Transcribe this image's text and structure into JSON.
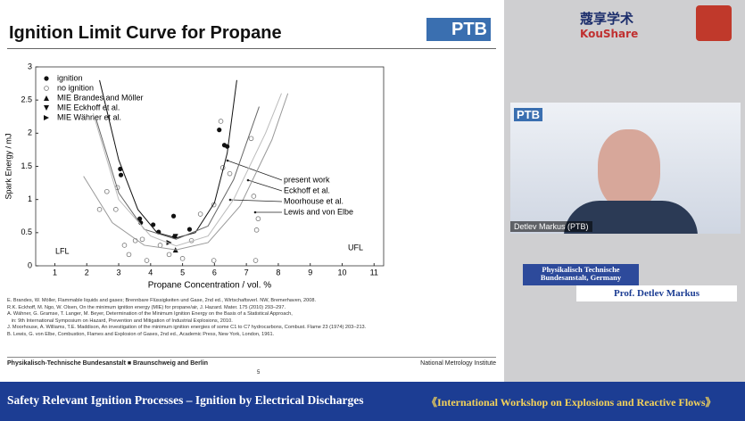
{
  "slide": {
    "title": "Ignition Limit Curve for Propane",
    "logo": "PTB",
    "references": [
      "E. Brandes, W. Möller, Flammable liquids and gases; Brennbare Flüssigkeiten und Gase, 2nd ed., Wirtschaftsverl. NW, Bremerhaven, 2008.",
      "R.K. Eckhoff, M. Ngo, W. Olsen, On the minimum ignition energy (MIE) for propane/air, J. Hazard. Mater. 175 (2010) 293–297.",
      "A. Wähner, G. Gramse, T. Langer, M. Beyer, Determination of the Minimum Ignition Energy on the Basis of a Statistical Approach,",
      "   in: 9th International Symposium on Hazard, Prevention and Mitigation of Industrial Explosions, 2010.",
      "J. Moorhouse, A. Williams, T.E. Maddison, An investigation of the minimum ignition energies of some C1 to C7 hydrocarbons, Combust. Flame 23 (1974) 203–213.",
      "B. Lewis, G. von Elbe, Combustion, Flames and Explosion of Gases, 2nd ed., Academic Press, New York, London, 1961."
    ],
    "footer": {
      "left": "Physikalisch-Technische Bundesanstalt ■ Braunschweig and Berlin",
      "right": "National Metrology Institute",
      "page": "5"
    }
  },
  "chart_data": {
    "type": "scatter",
    "x_label": "Propane Concentration / vol. %",
    "y_label": "Spark Energy / mJ",
    "xlim": [
      0.4,
      11.3
    ],
    "ylim": [
      0,
      3
    ],
    "xticks": [
      1,
      2,
      3,
      4,
      5,
      6,
      7,
      8,
      9,
      10,
      11
    ],
    "yticks": [
      0,
      0.5,
      1,
      1.5,
      2,
      2.5,
      3
    ],
    "legend": "upper left",
    "annotations": [
      "LFL",
      "UFL"
    ],
    "series": [
      {
        "name": "ignition",
        "marker": "filled-circle",
        "color": "#111",
        "x": [
          3.07,
          3.05,
          3.66,
          3.69,
          4.08,
          4.25,
          4.72,
          5.22,
          6.15,
          6.31,
          6.4,
          4.75
        ],
        "values": [
          1.37,
          1.46,
          0.71,
          0.65,
          0.62,
          0.51,
          0.75,
          0.55,
          2.05,
          1.82,
          1.8,
          0.44
        ]
      },
      {
        "name": "no ignition",
        "marker": "open-circle",
        "color": "#777",
        "x": [
          2.96,
          2.91,
          3.18,
          3.32,
          3.52,
          3.88,
          4.3,
          4.58,
          5.0,
          5.28,
          5.56,
          5.98,
          6.26,
          6.48,
          6.2,
          7.15,
          7.23,
          7.37,
          7.32,
          7.29,
          2.4,
          2.63,
          3.74,
          5.98
        ],
        "values": [
          1.18,
          0.85,
          0.31,
          0.17,
          0.38,
          0.08,
          0.31,
          0.17,
          0.11,
          0.38,
          0.78,
          0.92,
          1.48,
          1.39,
          2.18,
          1.92,
          1.05,
          0.71,
          0.54,
          0.08,
          0.85,
          1.12,
          0.4,
          0.08
        ]
      },
      {
        "name": "MIE Brandes and Möller",
        "marker": "triangle-up",
        "color": "#111",
        "x": [
          4.78
        ],
        "values": [
          0.24
        ]
      },
      {
        "name": "MIE Eckhoff et al.",
        "marker": "triangle-down",
        "color": "#111",
        "x": [
          4.78
        ],
        "values": [
          0.44
        ]
      },
      {
        "name": "MIE Wähner et al.",
        "marker": "triangle-right",
        "color": "#111",
        "x": [
          4.58
        ],
        "values": [
          0.35
        ]
      },
      {
        "name": "present work",
        "color": "#111",
        "x": [
          2.4,
          3.0,
          3.6,
          4.2,
          4.8,
          5.4,
          6.0,
          6.4,
          6.7
        ],
        "values": [
          2.8,
          1.6,
          0.85,
          0.5,
          0.42,
          0.5,
          0.95,
          1.7,
          2.8
        ]
      },
      {
        "name": "Eckhoff et al.",
        "color": "#666",
        "x": [
          2.3,
          3.0,
          3.8,
          4.8,
          5.8,
          6.6,
          7.4
        ],
        "values": [
          2.2,
          1.1,
          0.55,
          0.4,
          0.6,
          1.3,
          2.4
        ]
      },
      {
        "name": "Moorhouse et al.",
        "color": "#999",
        "x": [
          1.9,
          2.8,
          3.8,
          4.8,
          5.8,
          6.8,
          7.8,
          8.3
        ],
        "values": [
          1.35,
          0.65,
          0.31,
          0.24,
          0.35,
          0.9,
          1.9,
          2.6
        ]
      },
      {
        "name": "Lewis and von Elbe",
        "color": "#bbb",
        "x": [
          2.2,
          3.0,
          4.0,
          4.8,
          5.8,
          6.6,
          7.6,
          8.1
        ],
        "values": [
          2.3,
          1.0,
          0.45,
          0.3,
          0.45,
          1.0,
          2.0,
          2.6
        ]
      }
    ]
  },
  "header": {
    "brand_cn": "蔻享学术",
    "brand_en": "KouShare"
  },
  "video": {
    "logo": "PTB",
    "speaker_tag": "Detlev Markus (PTB)"
  },
  "caption": {
    "institution": [
      "Physikalisch Technische",
      "Bundesanstalt, Germany"
    ],
    "speaker": "Prof. Detlev Markus"
  },
  "banner": {
    "left": "Safety Relevant Ignition Processes – Ignition by Electrical Discharges",
    "right": "《International Workshop on Explosions and Reactive Flows》"
  }
}
